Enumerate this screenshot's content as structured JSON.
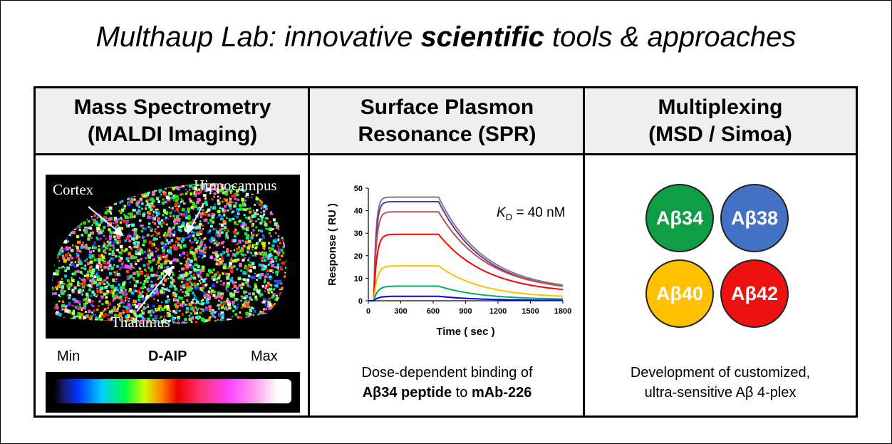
{
  "title": {
    "part1": "Multhaup Lab: innovative ",
    "bold": "scientific",
    "part2": " tools & approaches"
  },
  "panels": [
    {
      "header_line1": "Mass Spectrometry",
      "header_line2": "(MALDI Imaging)",
      "labels": {
        "cortex": "Cortex",
        "hippocampus": "Hippocampus",
        "thalamus": "Thalamus"
      },
      "colorbar": {
        "min": "Min",
        "name": "D-AIP",
        "max": "Max"
      }
    },
    {
      "header_line1": "Surface Plasmon",
      "header_line2": "Resonance (SPR)",
      "kd_symbol": "K",
      "kd_sub": "D",
      "kd_value": " = 40 nM",
      "caption_line1": "Dose-dependent binding of",
      "caption_bold1": "Aβ34 peptide",
      "caption_mid": " to ",
      "caption_bold2": "mAb-226"
    },
    {
      "header_line1": "Multiplexing",
      "header_line2": "(MSD / Simoa)",
      "circles": [
        {
          "label": "Aβ34",
          "color": "#0f9d45"
        },
        {
          "label": "Aβ38",
          "color": "#4472c4"
        },
        {
          "label": "Aβ40",
          "color": "#ffc000"
        },
        {
          "label": "Aβ42",
          "color": "#ee1111"
        }
      ],
      "caption_line1": "Development of customized,",
      "caption_line2": "ultra-sensitive Aβ 4-plex"
    }
  ],
  "chart_data": {
    "type": "line",
    "xlabel": "Time ( sec )",
    "ylabel": "Response ( RU )",
    "xlim": [
      0,
      1800
    ],
    "ylim": [
      0,
      50
    ],
    "xticks": [
      "0",
      "300",
      "600",
      "900",
      "1200",
      "1500",
      "1800"
    ],
    "yticks": [
      "0",
      "10",
      "20",
      "30",
      "40",
      "50"
    ],
    "injection_end": 650,
    "series": [
      {
        "color": "#808080",
        "plateau": 46,
        "end": 7
      },
      {
        "color": "#7030a0",
        "plateau": 44,
        "end": 6.5
      },
      {
        "color": "#c0504d",
        "plateau": 39.5,
        "end": 6.5
      },
      {
        "color": "#ff0000",
        "plateau": 29.5,
        "end": 5
      },
      {
        "color": "#ffc000",
        "plateau": 15.5,
        "end": 2
      },
      {
        "color": "#00b050",
        "plateau": 6.5,
        "end": 0.8
      },
      {
        "color": "#0000ff",
        "plateau": 2,
        "end": 0.2
      }
    ]
  }
}
